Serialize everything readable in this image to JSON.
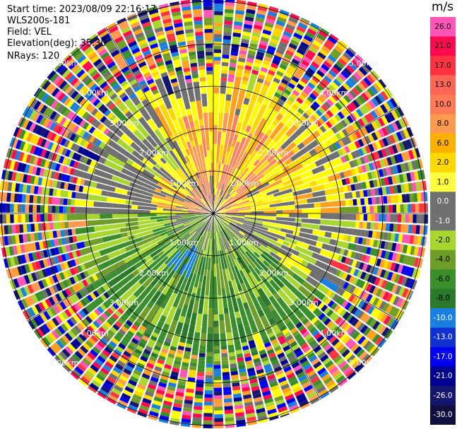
{
  "header": {
    "start_time": "Start time: 2023/08/09 22:16:17",
    "instrument": "WLS200s-181",
    "field": "Field: VEL",
    "elevation": "Elevation(deg): 35.30",
    "nrays": "NRays: 120"
  },
  "colorbar": {
    "unit": "m/s",
    "labels": [
      "26.0",
      "21.0",
      "17.0",
      "13.0",
      "10.0",
      "8.0",
      "6.0",
      "2.0",
      "1.0",
      "0.0",
      "-1.0",
      "-2.0",
      "-4.0",
      "-6.0",
      "-8.0",
      "-10.0",
      "-13.0",
      "-17.0",
      "-21.0",
      "-26.0",
      "-30.0"
    ],
    "colors": [
      "#ff55b8",
      "#ff0a50",
      "#ff3340",
      "#ff6655",
      "#ff7a55",
      "#ff9a50",
      "#ffb000",
      "#ffd800",
      "#ffff40",
      "#707070",
      "#707070",
      "#a8d830",
      "#6e9e28",
      "#3a8f2c",
      "#2a7a2a",
      "#1a80e0",
      "#1030d0",
      "#0000ee",
      "#000090",
      "#16166e",
      "#101040"
    ]
  },
  "range_labels": [
    "1.00km",
    "2.00km",
    "3.00km",
    "4.00km",
    "5.00km"
  ],
  "ppi": {
    "rays": 120
  }
}
